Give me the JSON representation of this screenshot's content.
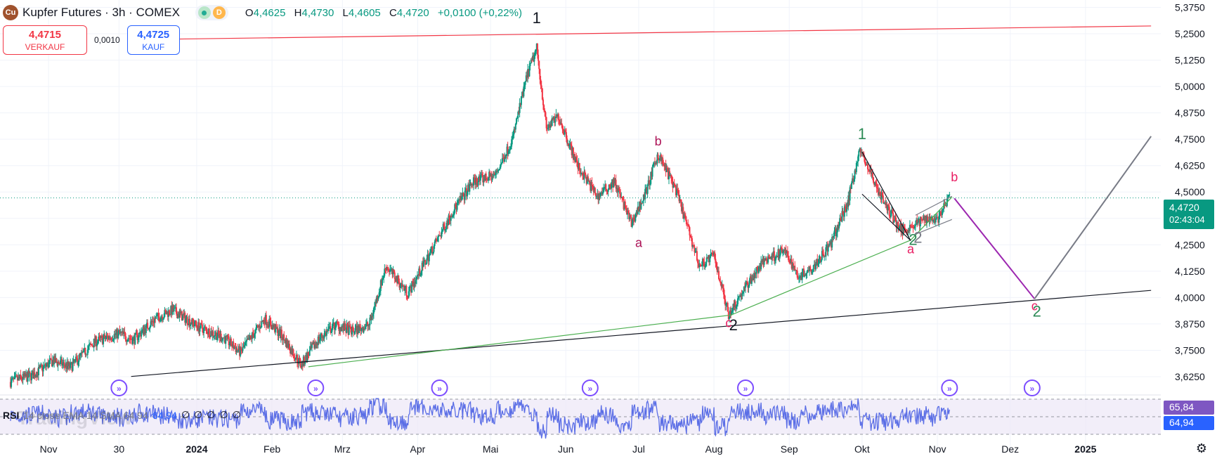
{
  "header": {
    "title": "Kupfer Futures · 3h · COMEX",
    "status_letter": "D",
    "ohlc": {
      "o_label": "O",
      "o": "4,4625",
      "h_label": "H",
      "h": "4,4730",
      "l_label": "L",
      "l": "4,4605",
      "c_label": "C",
      "c": "4,4720",
      "change": "+0,0100 (+0,22%)"
    }
  },
  "trade": {
    "sell_price": "4,4715",
    "sell_label": "VERKAUF",
    "spread": "0,0010",
    "buy_price": "4,4725",
    "buy_label": "KAUF"
  },
  "price_tag": {
    "value": "4,4720",
    "countdown": "02:43:04"
  },
  "rsi": {
    "legend_name": "RSI",
    "legend_params": "14 close EMA 14 SMA 64,94",
    "legend_value": "64,94",
    "legend_na": [
      "∅",
      "∅",
      "∅",
      "∅",
      "∅"
    ],
    "tag_1": "65,84",
    "tag_2": "64,94"
  },
  "watermark": "TradingView",
  "colors": {
    "up": "#089981",
    "down": "#f23645",
    "rsi": "#5b6ee6",
    "rsi_band": "#ede7f6",
    "wave_black": "#131722",
    "wave_red": "#e91e63",
    "wave_green": "#2e8b57",
    "projection": "#9c27b0",
    "settings": "gear-icon"
  },
  "chart_data": {
    "type": "candlestick",
    "symbol": "Kupfer Futures",
    "interval": "3h",
    "exchange": "COMEX",
    "y_ticks": [
      "5,3750",
      "5,2500",
      "5,1250",
      "5,0000",
      "4,8750",
      "4,7500",
      "4,6250",
      "4,5000",
      "4,3750",
      "4,2500",
      "4,1250",
      "4,0000",
      "3,8750",
      "3,7500",
      "3,6250"
    ],
    "y_tick_values": [
      5.375,
      5.25,
      5.125,
      5.0,
      4.875,
      4.75,
      4.625,
      4.5,
      4.375,
      4.25,
      4.125,
      4.0,
      3.875,
      3.75,
      3.625
    ],
    "ylim": [
      3.585,
      5.41
    ],
    "x_ticks": [
      {
        "label": "Nov",
        "date": "2023-11-01"
      },
      {
        "label": "30",
        "date": "2023-11-30"
      },
      {
        "label": "2024",
        "date": "2024-01-01"
      },
      {
        "label": "Feb",
        "date": "2024-02-01"
      },
      {
        "label": "Mrz",
        "date": "2024-03-01"
      },
      {
        "label": "Apr",
        "date": "2024-04-01"
      },
      {
        "label": "Mai",
        "date": "2024-05-01"
      },
      {
        "label": "Jun",
        "date": "2024-06-01"
      },
      {
        "label": "Jul",
        "date": "2024-07-01"
      },
      {
        "label": "Aug",
        "date": "2024-08-01"
      },
      {
        "label": "Sep",
        "date": "2024-09-01"
      },
      {
        "label": "Okt",
        "date": "2024-10-01"
      },
      {
        "label": "Nov",
        "date": "2024-11-01"
      },
      {
        "label": "Dez",
        "date": "2024-12-01"
      },
      {
        "label": "2025",
        "date": "2025-01-01"
      }
    ],
    "price_path": [
      [
        "2023-10-16",
        3.6
      ],
      [
        "2023-10-25",
        3.63
      ],
      [
        "2023-11-03",
        3.7
      ],
      [
        "2023-11-10",
        3.67
      ],
      [
        "2023-11-20",
        3.79
      ],
      [
        "2023-11-30",
        3.83
      ],
      [
        "2023-12-06",
        3.8
      ],
      [
        "2023-12-15",
        3.9
      ],
      [
        "2023-12-22",
        3.94
      ],
      [
        "2024-01-02",
        3.86
      ],
      [
        "2024-01-12",
        3.81
      ],
      [
        "2024-01-19",
        3.74
      ],
      [
        "2024-01-29",
        3.9
      ],
      [
        "2024-02-05",
        3.82
      ],
      [
        "2024-02-13",
        3.68
      ],
      [
        "2024-02-20",
        3.8
      ],
      [
        "2024-02-27",
        3.87
      ],
      [
        "2024-03-05",
        3.84
      ],
      [
        "2024-03-12",
        3.87
      ],
      [
        "2024-03-19",
        4.15
      ],
      [
        "2024-03-28",
        4.02
      ],
      [
        "2024-04-08",
        4.25
      ],
      [
        "2024-04-15",
        4.4
      ],
      [
        "2024-04-24",
        4.55
      ],
      [
        "2024-05-03",
        4.58
      ],
      [
        "2024-05-10",
        4.75
      ],
      [
        "2024-05-16",
        5.05
      ],
      [
        "2024-05-20",
        5.18
      ],
      [
        "2024-05-24",
        4.8
      ],
      [
        "2024-05-29",
        4.86
      ],
      [
        "2024-06-06",
        4.62
      ],
      [
        "2024-06-14",
        4.48
      ],
      [
        "2024-06-21",
        4.55
      ],
      [
        "2024-06-28",
        4.35
      ],
      [
        "2024-07-04",
        4.5
      ],
      [
        "2024-07-09",
        4.68
      ],
      [
        "2024-07-16",
        4.52
      ],
      [
        "2024-07-22",
        4.3
      ],
      [
        "2024-07-26",
        4.15
      ],
      [
        "2024-08-01",
        4.2
      ],
      [
        "2024-08-07",
        3.92
      ],
      [
        "2024-08-14",
        4.05
      ],
      [
        "2024-08-22",
        4.18
      ],
      [
        "2024-08-30",
        4.22
      ],
      [
        "2024-09-05",
        4.1
      ],
      [
        "2024-09-11",
        4.15
      ],
      [
        "2024-09-18",
        4.25
      ],
      [
        "2024-09-25",
        4.45
      ],
      [
        "2024-09-30",
        4.7
      ],
      [
        "2024-10-04",
        4.6
      ],
      [
        "2024-10-10",
        4.45
      ],
      [
        "2024-10-17",
        4.32
      ],
      [
        "2024-10-22",
        4.34
      ],
      [
        "2024-10-28",
        4.38
      ],
      [
        "2024-11-01",
        4.37
      ],
      [
        "2024-11-06",
        4.472
      ]
    ],
    "last_price": 4.472,
    "trendlines": [
      {
        "name": "upper-resistance",
        "color": "#f23645",
        "from": [
          "2023-12-05",
          5.222
        ],
        "to": [
          "2025-01-28",
          5.287
        ]
      },
      {
        "name": "lower-support",
        "color": "#131722",
        "from": [
          "2023-12-05",
          3.626
        ],
        "to": [
          "2025-01-28",
          4.034
        ]
      },
      {
        "name": "green-base",
        "color": "#4caf50",
        "points": [
          [
            "2024-02-16",
            3.672
          ],
          [
            "2024-08-08",
            3.917
          ],
          [
            "2024-10-21",
            4.272
          ],
          [
            "2024-11-07",
            4.476
          ]
        ]
      },
      {
        "name": "channel-upper",
        "color": "#131722",
        "from": [
          "2024-10-01",
          4.69
        ],
        "to": [
          "2024-10-21",
          4.27
        ]
      },
      {
        "name": "channel-lower",
        "color": "#131722",
        "from": [
          "2024-10-01",
          4.49
        ],
        "to": [
          "2024-10-21",
          4.27
        ]
      },
      {
        "name": "wedge-top",
        "color": "#787b86",
        "from": [
          "2024-10-23",
          4.39
        ],
        "to": [
          "2024-11-07",
          4.48
        ]
      },
      {
        "name": "wedge-bottom",
        "color": "#787b86",
        "from": [
          "2024-10-23",
          4.3
        ],
        "to": [
          "2024-11-07",
          4.37
        ]
      }
    ],
    "projection": [
      {
        "color": "#9c27b0",
        "from": [
          "2024-11-08",
          4.47
        ],
        "to": [
          "2024-12-11",
          3.994
        ]
      },
      {
        "color": "#787b86",
        "from": [
          "2024-12-11",
          3.994
        ],
        "to": [
          "2025-01-28",
          4.764
        ]
      }
    ],
    "wave_labels": [
      {
        "text": "1",
        "color": "#131722",
        "at": [
          "2024-05-20",
          5.3
        ]
      },
      {
        "text": "2",
        "color": "#131722",
        "at": [
          "2024-08-09",
          3.845
        ]
      },
      {
        "text": "c",
        "color": "#e91e63",
        "at": [
          "2024-08-07",
          3.86
        ]
      },
      {
        "text": "b",
        "color": "#ad1457",
        "at": [
          "2024-07-09",
          4.72
        ]
      },
      {
        "text": "a",
        "color": "#ad1457",
        "at": [
          "2024-07-01",
          4.24
        ]
      },
      {
        "text": "1",
        "color": "#2e8b57",
        "at": [
          "2024-10-01",
          4.75
        ]
      },
      {
        "text": "2",
        "color": "#2e8b57",
        "at": [
          "2024-10-22",
          4.25
        ]
      },
      {
        "text": "a",
        "color": "#e91e63",
        "at": [
          "2024-10-21",
          4.21
        ]
      },
      {
        "text": "2",
        "color": "#787b86",
        "at": [
          "2024-10-24",
          4.26
        ]
      },
      {
        "text": "b",
        "color": "#e91e63",
        "at": [
          "2024-11-08",
          4.55
        ]
      },
      {
        "text": "c",
        "color": "#e91e63",
        "at": [
          "2024-12-11",
          3.94
        ]
      },
      {
        "text": "2",
        "color": "#2e8b57",
        "at": [
          "2024-12-12",
          3.91
        ]
      }
    ],
    "event_markers": [
      "2023-11-30",
      "2024-02-19",
      "2024-04-10",
      "2024-06-11",
      "2024-08-14",
      "2024-11-06",
      "2024-12-10"
    ],
    "rsi_series": {
      "values_note": "RSI oscillates roughly between 30 and 75",
      "last": 64.94,
      "levels": [
        70,
        50,
        30
      ]
    }
  }
}
